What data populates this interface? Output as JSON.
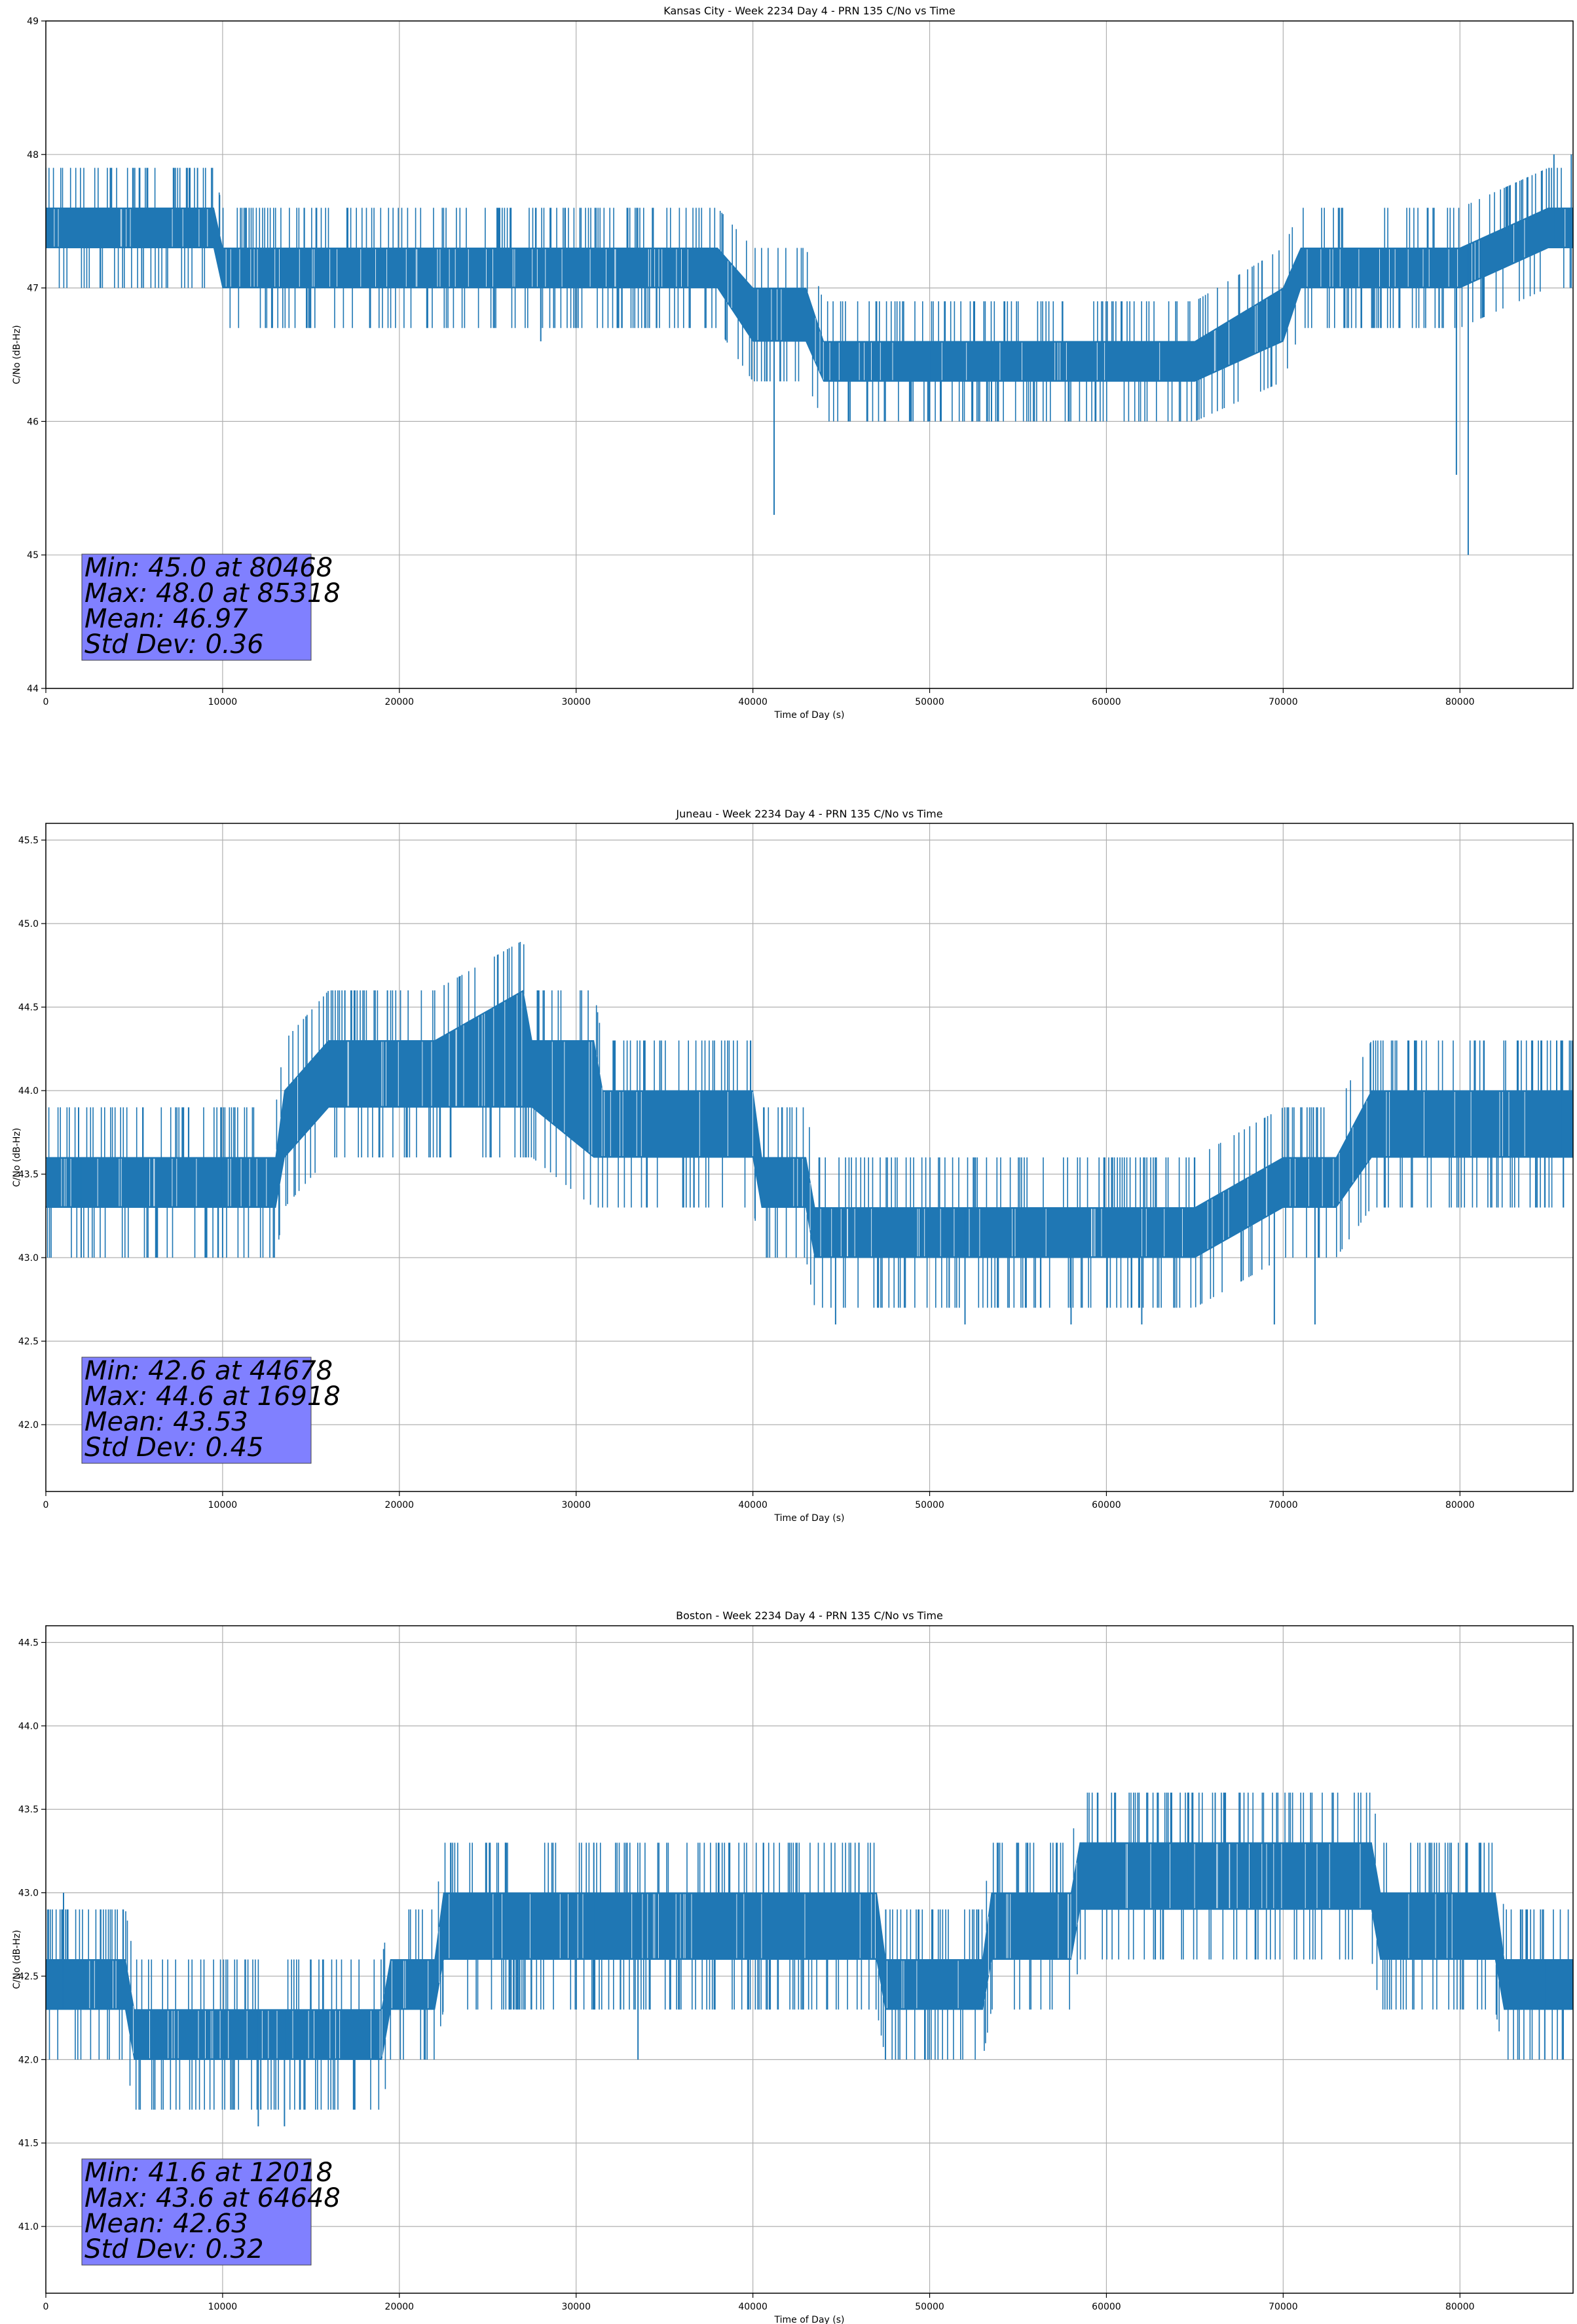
{
  "colors": {
    "series": "#1f77b4",
    "grid": "#b0b0b0",
    "axis": "#000000",
    "stats_box": "#8080ff"
  },
  "chart_data": [
    {
      "type": "line",
      "title": "Kansas City - Week 2234 Day 4 - PRN 135 C/No vs Time",
      "xlabel": "Time of Day (s)",
      "ylabel": "C/No (dB-Hz)",
      "xlim": [
        0,
        86400
      ],
      "ylim": [
        44,
        49
      ],
      "xticks": [
        0,
        10000,
        20000,
        30000,
        40000,
        50000,
        60000,
        70000,
        80000
      ],
      "yticks": [
        44,
        45,
        46,
        47,
        48,
        49
      ],
      "grid": true,
      "band": {
        "x": [
          0,
          9500,
          10000,
          24000,
          30000,
          38000,
          40000,
          43000,
          44000,
          45000,
          65000,
          70000,
          71000,
          80000,
          85000,
          86400
        ],
        "lower": [
          47.3,
          47.3,
          47.0,
          47.0,
          47.0,
          47.0,
          46.6,
          46.6,
          46.3,
          46.3,
          46.3,
          46.6,
          47.0,
          47.0,
          47.3,
          47.3
        ],
        "upper": [
          47.6,
          47.6,
          47.3,
          47.3,
          47.3,
          47.3,
          47.0,
          47.0,
          46.6,
          46.6,
          46.6,
          47.0,
          47.3,
          47.3,
          47.6,
          47.6
        ]
      },
      "spikes": [
        {
          "x": 41200,
          "low": 45.3,
          "high": 47.0
        },
        {
          "x": 79800,
          "low": 45.6,
          "high": 47.0
        },
        {
          "x": 80468,
          "low": 45.0,
          "high": 47.3
        },
        {
          "x": 85318,
          "low": 47.3,
          "high": 48.0
        },
        {
          "x": 86300,
          "low": 47.3,
          "high": 48.0
        },
        {
          "x": 50000,
          "low": 46.0,
          "high": 46.6
        },
        {
          "x": 53500,
          "low": 46.0,
          "high": 46.6
        },
        {
          "x": 28000,
          "low": 46.6,
          "high": 47.3
        }
      ],
      "stats": [
        "Min: 45.0 at 80468",
        "Max: 48.0 at 85318",
        "Mean: 46.97",
        "Std Dev: 0.36"
      ]
    },
    {
      "type": "line",
      "title": "Juneau - Week 2234 Day 4 - PRN 135 C/No vs Time",
      "xlabel": "Time of Day (s)",
      "ylabel": "C/No (dB-Hz)",
      "xlim": [
        0,
        86400
      ],
      "ylim": [
        41.6,
        45.6
      ],
      "xticks": [
        0,
        10000,
        20000,
        30000,
        40000,
        50000,
        60000,
        70000,
        80000
      ],
      "yticks": [
        42.0,
        42.5,
        43.0,
        43.5,
        44.0,
        44.5,
        45.0,
        45.5
      ],
      "tick_decimals": 1,
      "grid": true,
      "band": {
        "x": [
          0,
          13000,
          13500,
          16000,
          22000,
          27000,
          27500,
          31000,
          31500,
          40000,
          40500,
          43000,
          43500,
          60000,
          65000,
          70000,
          73000,
          75000,
          80000,
          82000,
          86400
        ],
        "lower": [
          43.3,
          43.3,
          43.6,
          43.9,
          43.9,
          43.9,
          43.9,
          43.6,
          43.6,
          43.6,
          43.3,
          43.3,
          43.0,
          43.0,
          43.0,
          43.3,
          43.3,
          43.6,
          43.6,
          43.6,
          43.6
        ],
        "upper": [
          43.6,
          43.6,
          44.0,
          44.3,
          44.3,
          44.6,
          44.3,
          44.3,
          44.0,
          44.0,
          43.6,
          43.6,
          43.3,
          43.3,
          43.3,
          43.6,
          43.6,
          44.0,
          44.0,
          44.0,
          44.0
        ]
      },
      "spikes": [
        {
          "x": 16918,
          "low": 43.9,
          "high": 44.6
        },
        {
          "x": 44678,
          "low": 42.6,
          "high": 43.3
        },
        {
          "x": 52000,
          "low": 42.6,
          "high": 43.3
        },
        {
          "x": 58000,
          "low": 42.6,
          "high": 43.0
        },
        {
          "x": 62000,
          "low": 42.6,
          "high": 43.0
        },
        {
          "x": 69500,
          "low": 42.6,
          "high": 43.3
        },
        {
          "x": 71800,
          "low": 42.6,
          "high": 43.3
        },
        {
          "x": 85800,
          "low": 43.6,
          "high": 44.3
        },
        {
          "x": 2000,
          "low": 43.0,
          "high": 43.6
        },
        {
          "x": 10000,
          "low": 43.0,
          "high": 43.6
        }
      ],
      "stats": [
        "Min: 42.6 at 44678",
        "Max: 44.6 at 16918",
        "Mean: 43.53",
        "Std Dev: 0.45"
      ]
    },
    {
      "type": "line",
      "title": "Boston - Week 2234 Day 4 - PRN 135 C/No vs Time",
      "xlabel": "Time of Day (s)",
      "ylabel": "C/No (dB-Hz)",
      "xlim": [
        0,
        86400
      ],
      "ylim": [
        40.6,
        44.6
      ],
      "xticks": [
        0,
        10000,
        20000,
        30000,
        40000,
        50000,
        60000,
        70000,
        80000
      ],
      "yticks": [
        41.0,
        41.5,
        42.0,
        42.5,
        43.0,
        43.5,
        44.0,
        44.5
      ],
      "tick_decimals": 1,
      "grid": true,
      "band": {
        "x": [
          0,
          4500,
          5000,
          19000,
          19500,
          22000,
          22500,
          47000,
          47500,
          53000,
          53500,
          58000,
          58500,
          75000,
          75500,
          82000,
          82500,
          86400
        ],
        "lower": [
          42.3,
          42.3,
          42.0,
          42.0,
          42.3,
          42.3,
          42.6,
          42.6,
          42.3,
          42.3,
          42.6,
          42.6,
          42.9,
          42.9,
          42.6,
          42.6,
          42.3,
          42.3
        ],
        "upper": [
          42.6,
          42.6,
          42.3,
          42.3,
          42.6,
          42.6,
          43.0,
          43.0,
          42.6,
          42.6,
          43.0,
          43.0,
          43.3,
          43.3,
          43.0,
          43.0,
          42.6,
          42.6
        ]
      },
      "spikes": [
        {
          "x": 12018,
          "low": 41.6,
          "high": 42.3
        },
        {
          "x": 13500,
          "low": 41.6,
          "high": 42.3
        },
        {
          "x": 64648,
          "low": 42.9,
          "high": 43.6
        },
        {
          "x": 26000,
          "low": 42.6,
          "high": 43.3
        },
        {
          "x": 31000,
          "low": 42.6,
          "high": 43.3
        },
        {
          "x": 46000,
          "low": 42.6,
          "high": 43.3
        },
        {
          "x": 47500,
          "low": 42.0,
          "high": 42.6
        },
        {
          "x": 33500,
          "low": 42.0,
          "high": 42.6
        },
        {
          "x": 84800,
          "low": 42.0,
          "high": 42.6
        },
        {
          "x": 1000,
          "low": 42.3,
          "high": 43.0
        }
      ],
      "stats": [
        "Min: 41.6 at 12018",
        "Max: 43.6 at 64648",
        "Mean: 42.63",
        "Std Dev: 0.32"
      ]
    }
  ]
}
